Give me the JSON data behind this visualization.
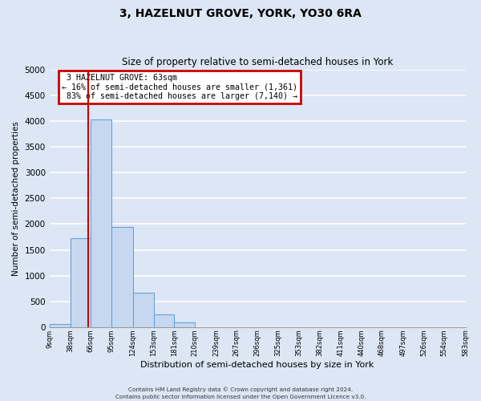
{
  "title": "3, HAZELNUT GROVE, YORK, YO30 6RA",
  "subtitle": "Size of property relative to semi-detached houses in York",
  "xlabel": "Distribution of semi-detached houses by size in York",
  "ylabel": "Number of semi-detached properties",
  "bar_edges": [
    9,
    38,
    66,
    95,
    124,
    153,
    181,
    210,
    239,
    267,
    296,
    325,
    353,
    382,
    411,
    440,
    468,
    497,
    526,
    554,
    583
  ],
  "bar_heights": [
    55,
    1730,
    4030,
    1950,
    660,
    245,
    85,
    0,
    0,
    0,
    0,
    0,
    0,
    0,
    0,
    0,
    0,
    0,
    0,
    0
  ],
  "property_size": 63,
  "property_label": "3 HAZELNUT GROVE: 63sqm",
  "pct_smaller": 16,
  "pct_larger": 83,
  "n_smaller": 1361,
  "n_larger": 7140,
  "ylim": [
    0,
    5000
  ],
  "yticks": [
    0,
    500,
    1000,
    1500,
    2000,
    2500,
    3000,
    3500,
    4000,
    4500,
    5000
  ],
  "bar_color": "#c5d8f0",
  "bar_edge_color": "#5b9bd5",
  "vline_color": "#cc0000",
  "annotation_box_color": "#cc0000",
  "fig_bg_color": "#dce6f5",
  "ax_bg_color": "#dce6f5",
  "grid_color": "#ffffff",
  "footer_line1": "Contains HM Land Registry data © Crown copyright and database right 2024.",
  "footer_line2": "Contains public sector information licensed under the Open Government Licence v3.0."
}
